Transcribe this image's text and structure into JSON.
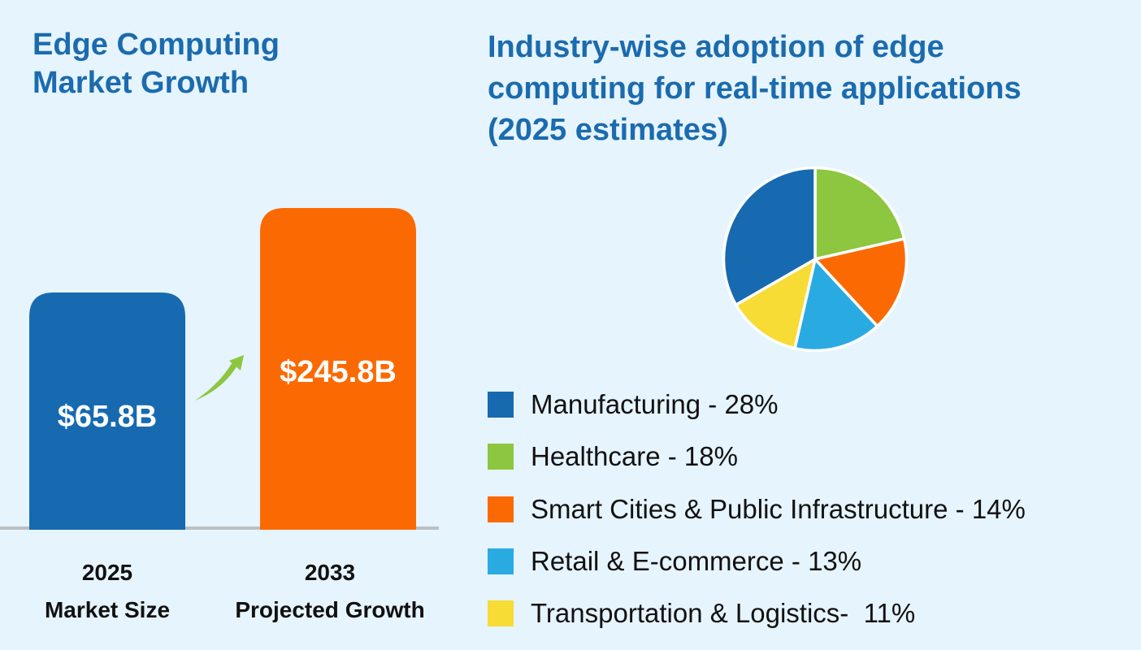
{
  "left_panel": {
    "title": "Edge Computing Market Growth"
  },
  "right_panel": {
    "title": "Industry-wise adoption of edge computing for real-time applications (2025 estimates)"
  },
  "chart_data": [
    {
      "type": "bar",
      "title": "Edge Computing Market Growth",
      "categories": [
        {
          "year": "2025",
          "label": "Market Size"
        },
        {
          "year": "2033",
          "label": "Projected Growth"
        }
      ],
      "values": [
        65.8,
        245.8
      ],
      "value_labels": [
        "$65.8B",
        "$245.8B"
      ],
      "unit": "USD billions",
      "colors": [
        "#176AB0",
        "#FB6A02"
      ],
      "arrow_color": "#8DC63F",
      "xlabel": "",
      "ylabel": ""
    },
    {
      "type": "pie",
      "title": "Industry-wise adoption of edge computing for real-time applications (2025 estimates)",
      "legend_position": "bottom",
      "slices": [
        {
          "name": "Manufacturing",
          "value": 28,
          "label": "Manufacturing - 28%",
          "color": "#176AB0"
        },
        {
          "name": "Healthcare",
          "value": 18,
          "label": "Healthcare - 18%",
          "color": "#8DC63F"
        },
        {
          "name": "Smart Cities & Public Infrastructure",
          "value": 14,
          "label": "Smart Cities & Public Infrastructure - 14%",
          "color": "#FB6A02"
        },
        {
          "name": "Retail & E-commerce",
          "value": 13,
          "label": "Retail & E-commerce - 13%",
          "color": "#29ABE2"
        },
        {
          "name": "Transportation & Logistics",
          "value": 11,
          "label": "Transportation & Logistics-  11%",
          "color": "#F6DC35"
        }
      ],
      "clockwise_draw_order_from_top": [
        "Healthcare",
        "Smart Cities & Public Infrastructure",
        "Retail & E-commerce",
        "Transportation & Logistics",
        "Manufacturing"
      ]
    }
  ]
}
